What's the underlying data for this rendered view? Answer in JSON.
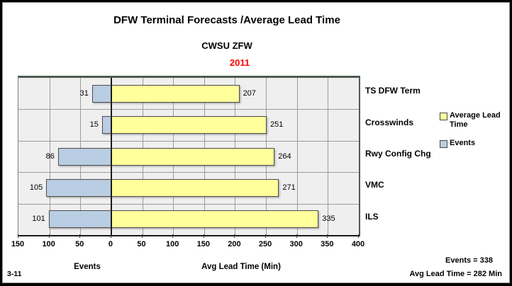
{
  "header": {
    "title": "DFW Terminal Forecasts /Average Lead Time",
    "subtitle": "CWSU ZFW",
    "year": "2011"
  },
  "chart_data": {
    "type": "bar",
    "orientation": "horizontal_diverging",
    "title": "DFW Terminal Forecasts /Average Lead Time",
    "subtitle": "CWSU ZFW",
    "year": "2011",
    "categories": [
      "TS DFW Term",
      "Crosswinds",
      "Rwy Config Chg",
      "VMC",
      "ILS"
    ],
    "series": [
      {
        "name": "Events",
        "side": "left",
        "color": "#B9CDE3",
        "values": [
          31,
          15,
          86,
          105,
          101
        ]
      },
      {
        "name": "Average Lead Time",
        "side": "right",
        "color": "#FFFF9C",
        "values": [
          207,
          251,
          264,
          271,
          335
        ]
      }
    ],
    "axis": {
      "tick_labels": [
        "150",
        "100",
        "50",
        "0",
        "50",
        "100",
        "150",
        "200",
        "250",
        "300",
        "350",
        "400"
      ],
      "tick_step": 50,
      "left_range": 150,
      "right_range": 400,
      "left_title": "Events",
      "right_title": "Avg Lead Time (Min)"
    },
    "legend": [
      {
        "label": "Average Lead Time",
        "color": "#FFFF9C"
      },
      {
        "label": "Events",
        "color": "#B9CDE3"
      }
    ],
    "grid": true,
    "colors": {
      "plot_bg": "#F0EFEF",
      "gridline": "#9B9B9B",
      "plot_frame": "#4E5B50",
      "zero_axis": "#1A1A1A",
      "year_text": "#FF0000",
      "bar_border": "#4D4D4D"
    }
  },
  "footer": {
    "note": "3-11",
    "events_total": "Events = 338",
    "avg_lead_total": "Avg Lead Time = 282 Min"
  }
}
